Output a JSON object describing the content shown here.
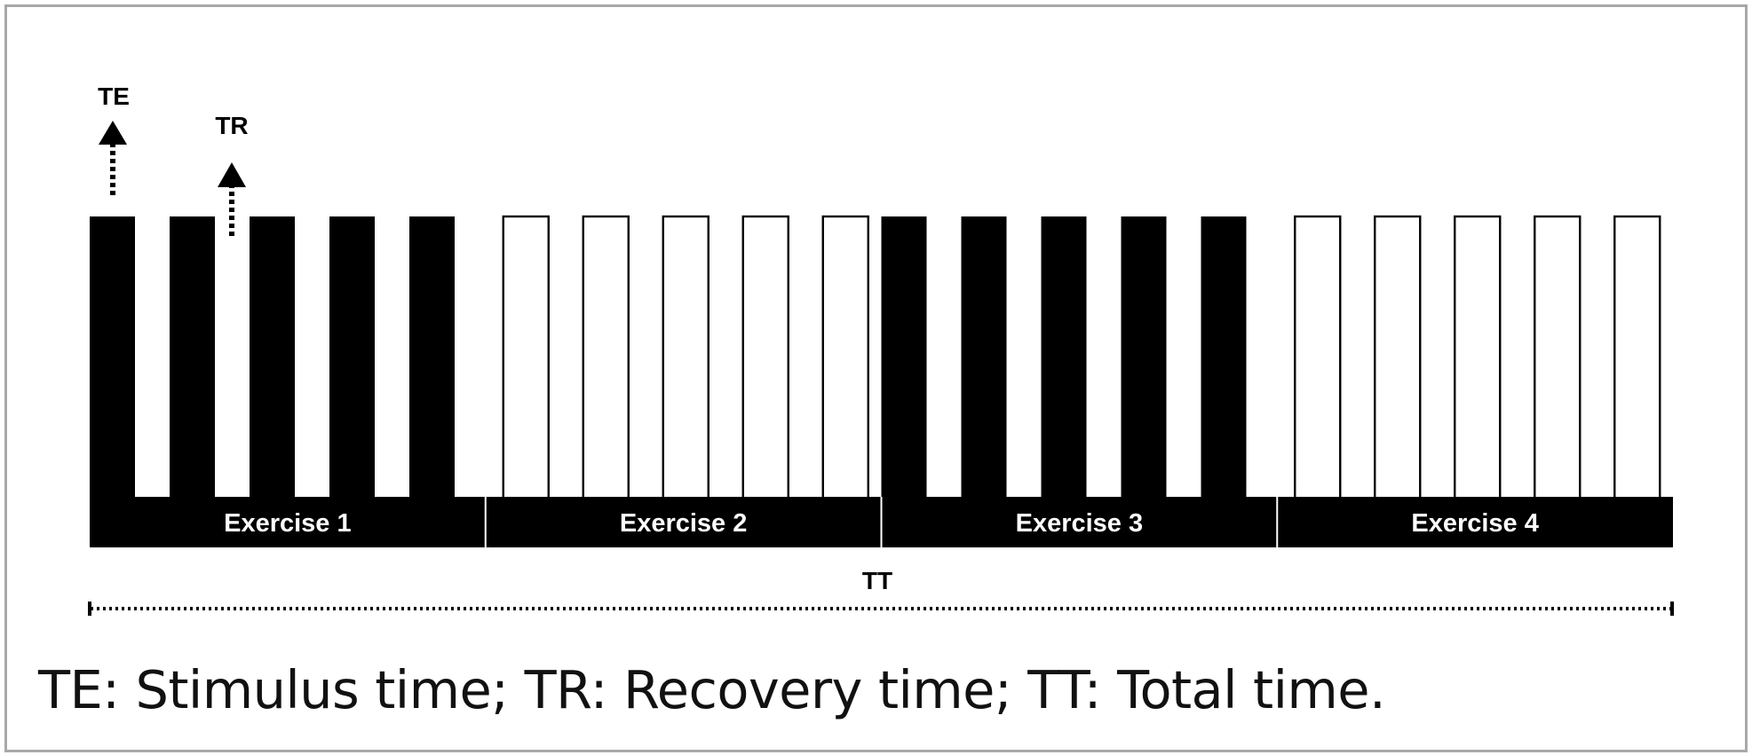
{
  "diagram": {
    "labels": {
      "stimulus": "TE",
      "recovery": "TR",
      "total": "TT"
    },
    "exercises": [
      {
        "label": "Exercise 1",
        "style": "filled"
      },
      {
        "label": "Exercise 2",
        "style": "outline"
      },
      {
        "label": "Exercise 3",
        "style": "filled"
      },
      {
        "label": "Exercise 4",
        "style": "outline"
      }
    ],
    "pulses_per_exercise": 5,
    "caption": "TE: Stimulus time; TR: Recovery time; TT: Total time."
  },
  "colors": {
    "ink": "#000000",
    "paper": "#ffffff",
    "border": "#a8a8a8"
  }
}
